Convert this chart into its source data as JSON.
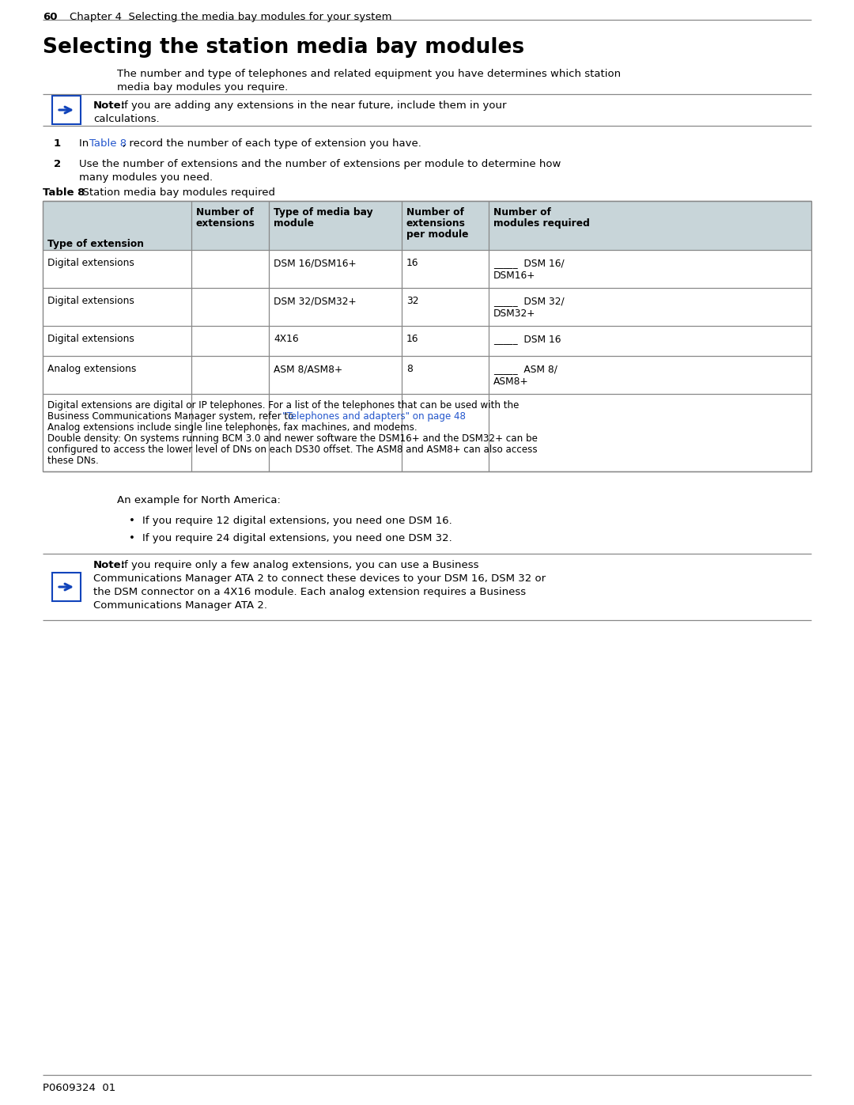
{
  "page_number": "60",
  "header_text": "Chapter 4  Selecting the media bay modules for your system",
  "section_title": "Selecting the station media bay modules",
  "body_line1": "The number and type of telephones and related equipment you have determines which station",
  "body_line2": "media bay modules you require.",
  "note1_bold": "Note:",
  "note1_rest": " If you are adding any extensions in the near future, include them in your",
  "note1_line2": "calculations.",
  "step1_prefix": "In ",
  "step1_link": "Table 8",
  "step1_rest": ", record the number of each type of extension you have.",
  "step2_line1": "Use the number of extensions and the number of extensions per module to determine how",
  "step2_line2": "many modules you need.",
  "table_caption_bold": "Table 8",
  "table_caption_rest": "  Station media bay modules required",
  "header_bg": "#c8d5d9",
  "white_bg": "#ffffff",
  "col_headers_line1": [
    "Type of extension",
    "Number of",
    "Type of media bay",
    "Number of",
    "Number of"
  ],
  "col_headers_line2": [
    "",
    "extensions",
    "module",
    "extensions",
    "modules required"
  ],
  "col_headers_line3": [
    "",
    "",
    "",
    "per module",
    ""
  ],
  "col_headers_bold_bottom": true,
  "table_rows": [
    [
      "Digital extensions",
      "",
      "DSM 16/DSM16+",
      "16",
      "_____  DSM 16/",
      "DSM16+"
    ],
    [
      "Digital extensions",
      "",
      "DSM 32/DSM32+",
      "32",
      "_____  DSM 32/",
      "DSM32+"
    ],
    [
      "Digital extensions",
      "",
      "4X16",
      "16",
      "_____  DSM 16",
      ""
    ],
    [
      "Analog extensions",
      "",
      "ASM 8/ASM8+",
      "8",
      "_____  ASM 8/",
      "ASM8+"
    ]
  ],
  "tnote1a": "Digital extensions are digital or IP telephones. For a list of the telephones that can be used with the",
  "tnote1b": "Business Communications Manager system, refer to ",
  "tnote1_link": "\"Telephones and adapters\" on page 48",
  "tnote1c": ".",
  "tnote2": "Analog extensions include single line telephones, fax machines, and modems.",
  "tnote3a": "Double density: On systems running BCM 3.0 and newer software the DSM16+ and the DSM32+ can be",
  "tnote3b": "configured to access the lower level of DNs on each DS30 offset. The ASM8 and ASM8+ can also access",
  "tnote3c": "these DNs.",
  "example_intro": "An example for North America:",
  "bullet1": "If you require 12 digital extensions, you need one DSM 16.",
  "bullet2": "If you require 24 digital extensions, you need one DSM 32.",
  "note2_bold": "Note:",
  "note2_rest": " If you require only a few analog extensions, you can use a Business",
  "note2_line2": "Communications Manager ATA 2 to connect these devices to your DSM 16, DSM 32 or",
  "note2_line3": "the DSM connector on a 4X16 module. Each analog extension requires a Business",
  "note2_line4": "Communications Manager ATA 2.",
  "footer": "P0609324  01",
  "link_color": "#2255cc",
  "text_color": "#000000",
  "line_color": "#888888",
  "note_box_color": "#1144bb",
  "header_line_color": "#888888"
}
